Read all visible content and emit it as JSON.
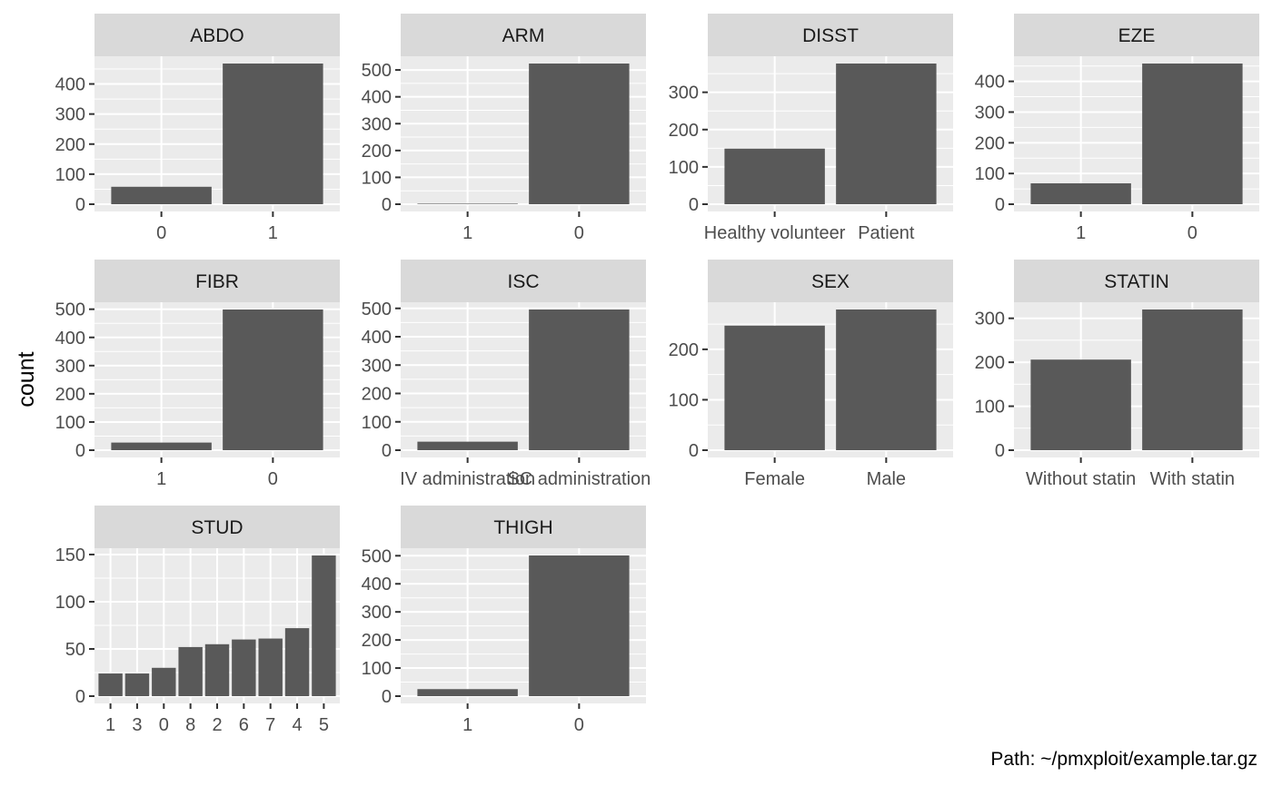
{
  "figure": {
    "ylabel": "count",
    "caption": "Path: ~/pmxploit/example.tar.gz",
    "colors": {
      "bar": "#595959",
      "panel": "#ebebeb",
      "strip": "#d9d9d9",
      "grid": "#ffffff",
      "tick": "#333333"
    }
  },
  "chart_data": [
    {
      "type": "bar",
      "title": "ABDO",
      "categories": [
        "0",
        "1"
      ],
      "values": [
        58,
        468
      ],
      "ylim": [
        0,
        468
      ],
      "yticks": [
        0,
        100,
        200,
        300,
        400
      ]
    },
    {
      "type": "bar",
      "title": "ARM",
      "categories": [
        "1",
        "0"
      ],
      "values": [
        2,
        524
      ],
      "ylim": [
        0,
        524
      ],
      "yticks": [
        0,
        100,
        200,
        300,
        400,
        500
      ]
    },
    {
      "type": "bar",
      "title": "DISST",
      "categories": [
        "Healthy volunteer",
        "Patient"
      ],
      "values": [
        149,
        377
      ],
      "ylim": [
        0,
        377
      ],
      "yticks": [
        0,
        100,
        200,
        300
      ]
    },
    {
      "type": "bar",
      "title": "EZE",
      "categories": [
        "1",
        "0"
      ],
      "values": [
        68,
        458
      ],
      "ylim": [
        0,
        458
      ],
      "yticks": [
        0,
        100,
        200,
        300,
        400
      ]
    },
    {
      "type": "bar",
      "title": "FIBR",
      "categories": [
        "1",
        "0"
      ],
      "values": [
        27,
        499
      ],
      "ylim": [
        0,
        499
      ],
      "yticks": [
        0,
        100,
        200,
        300,
        400,
        500
      ]
    },
    {
      "type": "bar",
      "title": "ISC",
      "categories": [
        "IV administration",
        "SC administration"
      ],
      "values": [
        30,
        496
      ],
      "ylim": [
        0,
        496
      ],
      "yticks": [
        0,
        100,
        200,
        300,
        400,
        500
      ]
    },
    {
      "type": "bar",
      "title": "SEX",
      "categories": [
        "Female",
        "Male"
      ],
      "values": [
        247,
        279
      ],
      "ylim": [
        0,
        279
      ],
      "yticks": [
        0,
        100,
        200
      ]
    },
    {
      "type": "bar",
      "title": "STATIN",
      "categories": [
        "Without statin",
        "With statin"
      ],
      "values": [
        206,
        320
      ],
      "ylim": [
        0,
        320
      ],
      "yticks": [
        0,
        100,
        200,
        300
      ]
    },
    {
      "type": "bar",
      "title": "STUD",
      "categories": [
        "1",
        "3",
        "0",
        "8",
        "2",
        "6",
        "7",
        "4",
        "5"
      ],
      "values": [
        24,
        24,
        30,
        52,
        55,
        60,
        61,
        72,
        149
      ],
      "ylim": [
        0,
        149
      ],
      "yticks": [
        0,
        50,
        100,
        150
      ]
    },
    {
      "type": "bar",
      "title": "THIGH",
      "categories": [
        "1",
        "0"
      ],
      "values": [
        25,
        501
      ],
      "ylim": [
        0,
        501
      ],
      "yticks": [
        0,
        100,
        200,
        300,
        400,
        500
      ]
    }
  ]
}
